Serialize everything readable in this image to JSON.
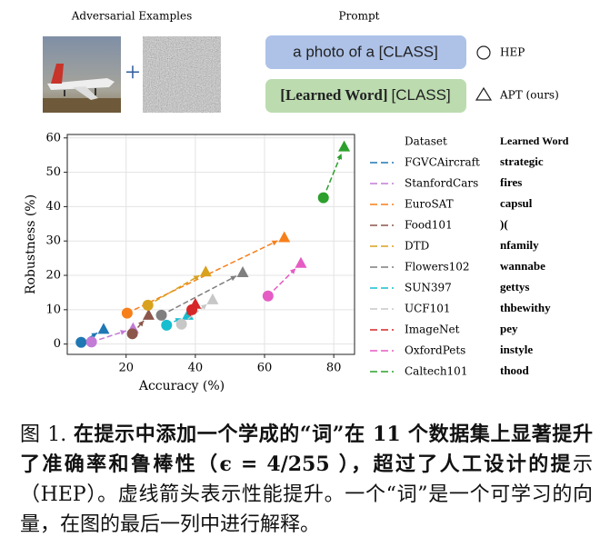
{
  "figure": {
    "left_title": "Adversarial Examples",
    "right_title": "Prompt",
    "plus": "+",
    "hand_prompt": "a photo of a [CLASS]",
    "learned_prompt_word": "[Learned Word]",
    "learned_prompt_class": "[CLASS]",
    "hep_label": "HEP",
    "apt_label": "APT (ours)"
  },
  "chart_data": {
    "type": "scatter",
    "xlabel": "Accuracy (%)",
    "ylabel": "Robustness (%)",
    "xlim": [
      3,
      86
    ],
    "ylim": [
      -3,
      61
    ],
    "xticks": [
      20,
      40,
      60,
      80
    ],
    "yticks": [
      0,
      10,
      20,
      30,
      40,
      50,
      60
    ],
    "grid": true,
    "legend_titles": [
      "Dataset",
      "Learned Word"
    ],
    "series": [
      {
        "name": "FGVCAircraft",
        "word": "strategic",
        "color": "#1f77b4",
        "x": [
          7,
          13.5
        ],
        "values": [
          0.5,
          4.3
        ]
      },
      {
        "name": "StanfordCars",
        "word": "fires",
        "color": "#c27bd6",
        "x": [
          10,
          22
        ],
        "values": [
          0.6,
          4.5
        ]
      },
      {
        "name": "EuroSAT",
        "word": "capsul",
        "color": "#f77f1a",
        "x": [
          20.3,
          65.7
        ],
        "values": [
          9,
          31
        ]
      },
      {
        "name": "Food101",
        "word": ")(",
        "color": "#8c564b",
        "x": [
          21.8,
          26.5
        ],
        "values": [
          3,
          8.4
        ]
      },
      {
        "name": "DTD",
        "word": "nfamily",
        "color": "#d8a21e",
        "x": [
          26.3,
          43
        ],
        "values": [
          11.3,
          21
        ]
      },
      {
        "name": "Flowers102",
        "word": "wannabe",
        "color": "#7f7f7f",
        "x": [
          30.2,
          53.7
        ],
        "values": [
          8.4,
          20.8
        ]
      },
      {
        "name": "SUN397",
        "word": "gettys",
        "color": "#17becf",
        "x": [
          31.7,
          37.8
        ],
        "values": [
          5.5,
          8.4
        ]
      },
      {
        "name": "UCF101",
        "word": "thbewithy",
        "color": "#c7c7c7",
        "x": [
          36,
          45
        ],
        "values": [
          5.8,
          12.9
        ]
      },
      {
        "name": "ImageNet",
        "word": "pey",
        "color": "#d62728",
        "x": [
          39,
          40
        ],
        "values": [
          10,
          11.6
        ]
      },
      {
        "name": "OxfordPets",
        "word": "instyle",
        "color": "#e55cc4",
        "x": [
          61,
          70.5
        ],
        "values": [
          14,
          23.5
        ]
      },
      {
        "name": "Caltech101",
        "word": "thood",
        "color": "#2ca02c",
        "x": [
          77,
          83
        ],
        "values": [
          42.6,
          57.4
        ]
      }
    ]
  },
  "caption": {
    "label": "图 1.",
    "bold": "在提示中添加一个学成的“词”在 11 个数据集上显著提升了准确率和鲁棒性（ϵ = 4/255 ），超过了人工设计的提",
    "text": "示（HEP）。虚线箭头表示性能提升。一个“词”是一个可学习的向量，在图的最后一列中进行解释。"
  }
}
